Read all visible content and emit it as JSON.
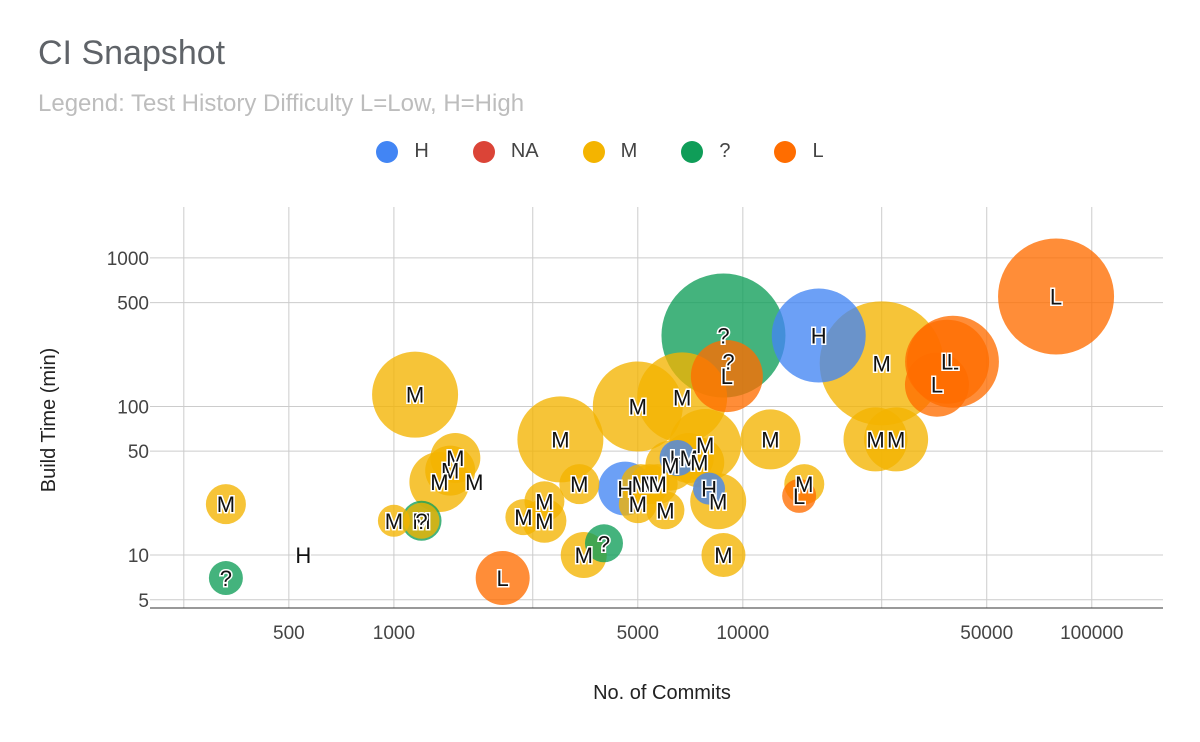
{
  "chart_data": {
    "type": "bubble",
    "title": "CI Snapshot",
    "subtitle": "Legend: Test History Difficulty L=Low, H=High",
    "xlabel": "No. of Commits",
    "ylabel": "Build Time (min)",
    "xscale": "log",
    "yscale": "log",
    "xlim": [
      200,
      160000
    ],
    "ylim": [
      4.4,
      2200
    ],
    "xticks": [
      500,
      1000,
      5000,
      10000,
      50000,
      100000
    ],
    "xtick_labels": [
      "500",
      "1000",
      "5000",
      "10000",
      "50000",
      "100000"
    ],
    "xgrid": [
      250,
      500,
      1000,
      2500,
      5000,
      10000,
      25000,
      50000,
      100000
    ],
    "yticks": [
      5,
      10,
      50,
      100,
      500,
      1000
    ],
    "ytick_labels": [
      "5",
      "10",
      "50",
      "100",
      "500",
      "1000"
    ],
    "ygrid": [
      5,
      10,
      50,
      100,
      500,
      1000
    ],
    "grid": true,
    "legend_position": "top",
    "series": [
      {
        "name": "H",
        "color": "#4285f4",
        "points": [
          {
            "x": 16500,
            "y": 300,
            "size": 47,
            "label": "H"
          },
          {
            "x": 4600,
            "y": 28,
            "size": 27,
            "label": "H"
          },
          {
            "x": 6500,
            "y": 45,
            "size": 18,
            "label": "H"
          },
          {
            "x": 8000,
            "y": 28,
            "size": 16,
            "label": "H"
          },
          {
            "x": 550,
            "y": 10,
            "size": 0,
            "label": "H"
          }
        ]
      },
      {
        "name": "NA",
        "color": "#db4437",
        "points": []
      },
      {
        "name": "M",
        "color": "#f4b400",
        "points": [
          {
            "x": 330,
            "y": 22,
            "size": 20,
            "label": "M"
          },
          {
            "x": 1150,
            "y": 120,
            "size": 43,
            "label": "M"
          },
          {
            "x": 1000,
            "y": 17,
            "size": 16,
            "label": "M"
          },
          {
            "x": 1200,
            "y": 17,
            "size": 18,
            "label": "M"
          },
          {
            "x": 1500,
            "y": 45,
            "size": 25,
            "label": "M"
          },
          {
            "x": 1450,
            "y": 37,
            "size": 25,
            "label": "M"
          },
          {
            "x": 1350,
            "y": 31,
            "size": 30,
            "label": "M"
          },
          {
            "x": 1700,
            "y": 31,
            "size": 0,
            "label": "M"
          },
          {
            "x": 2350,
            "y": 18,
            "size": 18,
            "label": "M"
          },
          {
            "x": 2700,
            "y": 23,
            "size": 20,
            "label": "M"
          },
          {
            "x": 2700,
            "y": 17,
            "size": 22,
            "label": "M"
          },
          {
            "x": 3000,
            "y": 60,
            "size": 43,
            "label": "M"
          },
          {
            "x": 3500,
            "y": 10,
            "size": 23,
            "label": "M"
          },
          {
            "x": 3400,
            "y": 30,
            "size": 20,
            "label": "M"
          },
          {
            "x": 5000,
            "y": 100,
            "size": 45,
            "label": "M"
          },
          {
            "x": 5000,
            "y": 22,
            "size": 19,
            "label": "M"
          },
          {
            "x": 5100,
            "y": 30,
            "size": 20,
            "label": "M"
          },
          {
            "x": 5400,
            "y": 30,
            "size": 20,
            "label": "M"
          },
          {
            "x": 5700,
            "y": 30,
            "size": 20,
            "label": "M"
          },
          {
            "x": 6000,
            "y": 20,
            "size": 19,
            "label": "M"
          },
          {
            "x": 6700,
            "y": 115,
            "size": 45,
            "label": "M"
          },
          {
            "x": 6200,
            "y": 40,
            "size": 25,
            "label": "M"
          },
          {
            "x": 7000,
            "y": 45,
            "size": 25,
            "label": "M"
          },
          {
            "x": 7500,
            "y": 42,
            "size": 25,
            "label": "M"
          },
          {
            "x": 7800,
            "y": 55,
            "size": 36,
            "label": "M"
          },
          {
            "x": 8500,
            "y": 23,
            "size": 28,
            "label": "M"
          },
          {
            "x": 8800,
            "y": 10,
            "size": 22,
            "label": "M"
          },
          {
            "x": 12000,
            "y": 60,
            "size": 30,
            "label": "M"
          },
          {
            "x": 15000,
            "y": 30,
            "size": 20,
            "label": "M"
          },
          {
            "x": 25000,
            "y": 195,
            "size": 62,
            "label": "M"
          },
          {
            "x": 24000,
            "y": 60,
            "size": 32,
            "label": "M"
          },
          {
            "x": 27500,
            "y": 60,
            "size": 32,
            "label": "M"
          }
        ]
      },
      {
        "name": "?",
        "color": "#0f9d58",
        "points": [
          {
            "x": 8800,
            "y": 300,
            "size": 62,
            "label": "?"
          },
          {
            "x": 1200,
            "y": 17,
            "size": 20,
            "label": "?"
          },
          {
            "x": 4000,
            "y": 12,
            "size": 19,
            "label": "?"
          },
          {
            "x": 330,
            "y": 7,
            "size": 17,
            "label": "?"
          }
        ]
      },
      {
        "name": "L",
        "color": "#ff6d00",
        "points": [
          {
            "x": 79000,
            "y": 550,
            "size": 58,
            "label": "L"
          },
          {
            "x": 40000,
            "y": 200,
            "size": 46,
            "label": "L"
          },
          {
            "x": 38500,
            "y": 200,
            "size": 42,
            "label": "L"
          },
          {
            "x": 36000,
            "y": 140,
            "size": 32,
            "label": "L"
          },
          {
            "x": 9000,
            "y": 160,
            "size": 36,
            "label": "L"
          },
          {
            "x": 9100,
            "y": 200,
            "size": 0,
            "label": "?"
          },
          {
            "x": 14500,
            "y": 25,
            "size": 17,
            "label": "L"
          },
          {
            "x": 2050,
            "y": 7,
            "size": 27,
            "label": "L"
          }
        ]
      }
    ]
  }
}
